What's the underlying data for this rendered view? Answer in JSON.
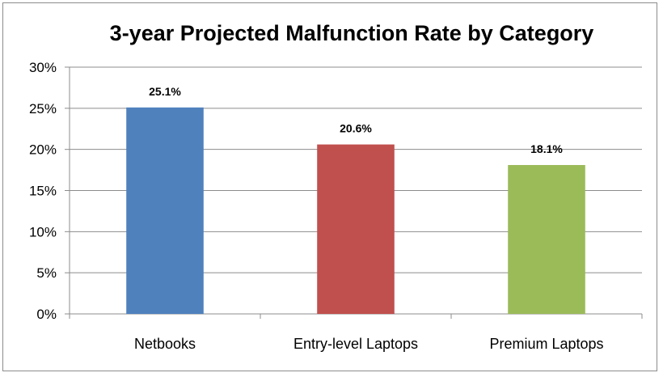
{
  "chart_data": {
    "type": "bar",
    "title": "3-year Projected Malfunction Rate by Category",
    "categories": [
      "Netbooks",
      "Entry-level Laptops",
      "Premium Laptops"
    ],
    "values": [
      25.1,
      20.6,
      18.1
    ],
    "data_labels": [
      "25.1%",
      "20.6%",
      "18.1%"
    ],
    "colors": [
      "#4f81bd",
      "#c0504d",
      "#9bbb59"
    ],
    "yticks": [
      0,
      5,
      10,
      15,
      20,
      25,
      30
    ],
    "ytick_labels": [
      "0%",
      "5%",
      "10%",
      "15%",
      "20%",
      "25%",
      "30%"
    ],
    "ylim": [
      0,
      30
    ],
    "xlabel": "",
    "ylabel": "",
    "grid": true,
    "legend": "none"
  }
}
